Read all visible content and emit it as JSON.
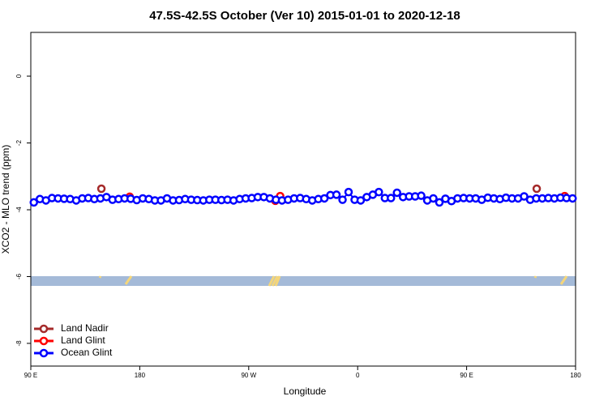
{
  "chart_data": {
    "type": "line",
    "title": "47.5S-42.5S October (Ver 10)   2015-01-01 to 2020-12-18",
    "x_label": "Longitude",
    "y_label": "XCO2 - MLO trend (ppm)",
    "xlim": [
      90,
      540
    ],
    "ylim": [
      -8.68,
      1.31
    ],
    "xticks": [
      {
        "value": 90,
        "label": "90 E"
      },
      180,
      {
        "value": 270,
        "label": "90 W"
      },
      {
        "value": 360,
        "label": "0"
      },
      {
        "value": 450,
        "label": "90 E"
      },
      {
        "value": 540,
        "label": "180"
      }
    ],
    "yticks": [
      0,
      -2,
      -4,
      -6,
      -8
    ],
    "legend": "bottomleft",
    "series": [
      {
        "name": "Land Nadir",
        "color": "#a52a2a",
        "x": [
          148.3,
          507.9
        ],
        "values": [
          -3.37,
          -3.37
        ]
      },
      {
        "name": "Land Glint",
        "color": "#ff0000",
        "x": [
          171.7,
          292,
          296,
          531
        ],
        "values": [
          -3.61,
          -3.73,
          -3.59,
          -3.59
        ]
      },
      {
        "name": "Ocean Glint",
        "color": "#0000ff",
        "x": [
          92.5,
          97.5,
          102.5,
          107.5,
          112.5,
          117.5,
          122.5,
          127.5,
          132.5,
          137.5,
          142.5,
          147.5,
          152.5,
          157.5,
          162.5,
          167.5,
          172.5,
          177.5,
          182.5,
          187.5,
          192.5,
          197.5,
          202.5,
          207.5,
          212.5,
          217.5,
          222.5,
          227.5,
          232.5,
          237.5,
          242.5,
          247.5,
          252.5,
          257.5,
          262.5,
          267.5,
          272.5,
          277.5,
          282.5,
          287.5,
          292.5,
          297.5,
          302.5,
          307.5,
          312.5,
          317.5,
          322.5,
          327.5,
          332.5,
          337.5,
          342.5,
          347.5,
          352.5,
          357.5,
          362.5,
          367.5,
          372.5,
          377.5,
          382.5,
          387.5,
          392.5,
          397.5,
          402.5,
          407.5,
          412.5,
          417.5,
          422.5,
          427.5,
          432.5,
          437.5,
          442.5,
          447.5,
          452.5,
          457.5,
          462.5,
          467.5,
          472.5,
          477.5,
          482.5,
          487.5,
          492.5,
          497.5,
          502.5,
          507.5,
          512.5,
          517.5,
          522.5,
          527.5,
          532.5,
          537.5
        ],
        "values": [
          -3.78,
          -3.68,
          -3.72,
          -3.65,
          -3.66,
          -3.67,
          -3.68,
          -3.72,
          -3.66,
          -3.65,
          -3.68,
          -3.66,
          -3.62,
          -3.7,
          -3.68,
          -3.66,
          -3.67,
          -3.71,
          -3.66,
          -3.68,
          -3.72,
          -3.72,
          -3.66,
          -3.72,
          -3.71,
          -3.68,
          -3.7,
          -3.71,
          -3.72,
          -3.7,
          -3.7,
          -3.71,
          -3.7,
          -3.72,
          -3.68,
          -3.66,
          -3.65,
          -3.62,
          -3.62,
          -3.66,
          -3.7,
          -3.72,
          -3.7,
          -3.66,
          -3.65,
          -3.68,
          -3.72,
          -3.68,
          -3.66,
          -3.56,
          -3.55,
          -3.7,
          -3.47,
          -3.7,
          -3.72,
          -3.62,
          -3.55,
          -3.47,
          -3.65,
          -3.65,
          -3.49,
          -3.62,
          -3.6,
          -3.6,
          -3.58,
          -3.72,
          -3.66,
          -3.78,
          -3.67,
          -3.74,
          -3.66,
          -3.65,
          -3.66,
          -3.66,
          -3.7,
          -3.64,
          -3.66,
          -3.68,
          -3.64,
          -3.66,
          -3.66,
          -3.6,
          -3.7,
          -3.66,
          -3.66,
          -3.65,
          -3.66,
          -3.64,
          -3.65,
          -3.66
        ]
      }
    ]
  }
}
